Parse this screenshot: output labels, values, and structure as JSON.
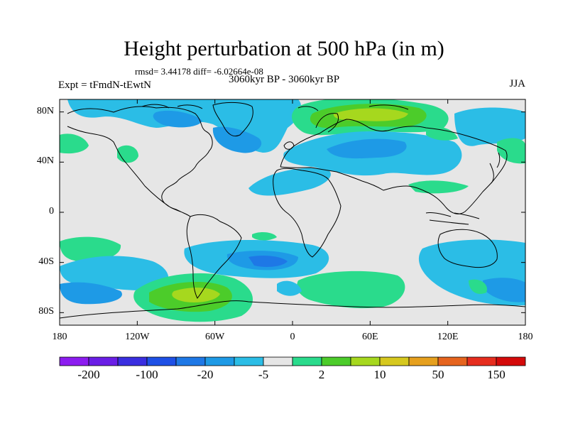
{
  "title": "Height perturbation at 500 hPa (in m)",
  "stats": "rmsd= 3.44178 diff= -6.02664e-08",
  "experiment": "Expt = tFmdN-tEwtN",
  "period": "3060kyr BP - 3060kyr BP",
  "season": "JJA",
  "lat_ticks": [
    {
      "label": "80N",
      "value": 80
    },
    {
      "label": "40N",
      "value": 40
    },
    {
      "label": "0",
      "value": 0
    },
    {
      "label": "40S",
      "value": -40
    },
    {
      "label": "80S",
      "value": -80
    }
  ],
  "lon_ticks": [
    {
      "label": "180",
      "value": -180
    },
    {
      "label": "120W",
      "value": -120
    },
    {
      "label": "60W",
      "value": -60
    },
    {
      "label": "0",
      "value": 0
    },
    {
      "label": "60E",
      "value": 60
    },
    {
      "label": "120E",
      "value": 120
    },
    {
      "label": "180",
      "value": 180
    }
  ],
  "colorbar": {
    "colors": [
      "#8c1cf0",
      "#6a1ee6",
      "#3a2ee0",
      "#1e50e6",
      "#1e78e6",
      "#1e9ae6",
      "#2bbde6",
      "#e6e6e6",
      "#2adb8c",
      "#4ccc2a",
      "#a6d81e",
      "#d6c81e",
      "#e6a01e",
      "#e6641e",
      "#e62d1e",
      "#d40a0a"
    ],
    "labels": [
      "-200",
      "-100",
      "-20",
      "-5",
      "2",
      "10",
      "50",
      "150"
    ]
  },
  "chart_data": {
    "type": "heatmap",
    "title": "Height perturbation at 500 hPa (in m)",
    "xlabel": "",
    "ylabel": "",
    "xlim": [
      -180,
      180
    ],
    "ylim": [
      -90,
      90
    ],
    "levels": [
      "-200",
      "-100",
      "-20",
      "-5",
      "2",
      "10",
      "50",
      "150"
    ],
    "regions": [
      {
        "lon": -40,
        "lat": 78,
        "level": "-5"
      },
      {
        "lon": -90,
        "lat": 65,
        "level": "-5"
      },
      {
        "lon": -40,
        "lat": 48,
        "level": "-20"
      },
      {
        "lon": 40,
        "lat": 78,
        "level": "10"
      },
      {
        "lon": 55,
        "lat": 50,
        "level": "-20"
      },
      {
        "lon": 155,
        "lat": 75,
        "level": "-5"
      },
      {
        "lon": 165,
        "lat": 45,
        "level": "2"
      },
      {
        "lon": -130,
        "lat": 42,
        "level": "2"
      },
      {
        "lon": -10,
        "lat": 20,
        "level": "-5"
      },
      {
        "lon": 30,
        "lat": 32,
        "level": "-5"
      },
      {
        "lon": -155,
        "lat": -35,
        "level": "2"
      },
      {
        "lon": -40,
        "lat": -42,
        "level": "-20"
      },
      {
        "lon": -75,
        "lat": -65,
        "level": "10"
      },
      {
        "lon": 45,
        "lat": -62,
        "level": "2"
      },
      {
        "lon": 130,
        "lat": -50,
        "level": "-5"
      },
      {
        "lon": -160,
        "lat": -62,
        "level": "-20"
      }
    ]
  }
}
